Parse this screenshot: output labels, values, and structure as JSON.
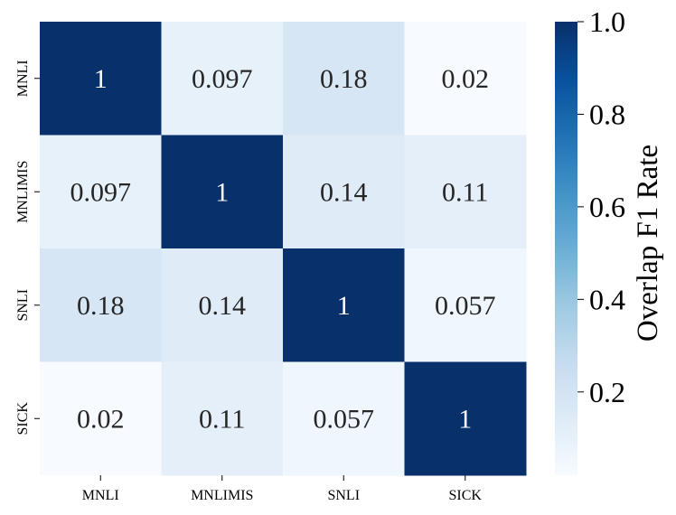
{
  "chart_data": {
    "type": "heatmap",
    "title": "",
    "xlabel": "",
    "ylabel": "",
    "x_categories": [
      "MNLI",
      "MNLIMIS",
      "SNLI",
      "SICK"
    ],
    "y_categories": [
      "MNLI",
      "MNLIMIS",
      "SNLI",
      "SICK"
    ],
    "values": [
      [
        1,
        0.097,
        0.18,
        0.02
      ],
      [
        0.097,
        1,
        0.14,
        0.11
      ],
      [
        0.18,
        0.14,
        1,
        0.057
      ],
      [
        0.02,
        0.11,
        0.057,
        1
      ]
    ],
    "value_labels": [
      [
        "1",
        "0.097",
        "0.18",
        "0.02"
      ],
      [
        "0.097",
        "1",
        "0.14",
        "0.11"
      ],
      [
        "0.18",
        "0.14",
        "1",
        "0.057"
      ],
      [
        "0.02",
        "0.11",
        "0.057",
        "1"
      ]
    ],
    "colormap": "Blues",
    "colormap_stops": [
      "#f7fbff",
      "#deebf7",
      "#c6dbef",
      "#9ecae1",
      "#6baed6",
      "#4292c6",
      "#2171b5",
      "#08519c",
      "#08306b"
    ],
    "vmin": 0.02,
    "vmax": 1.0,
    "colorbar": {
      "label": "Overlap F1 Rate",
      "ticks": [
        0.2,
        0.4,
        0.6,
        0.8,
        1.0
      ],
      "tick_labels": [
        "0.2",
        "0.4",
        "0.6",
        "0.8",
        "1.0"
      ]
    },
    "grid": false,
    "legend": "colorbar-right"
  }
}
